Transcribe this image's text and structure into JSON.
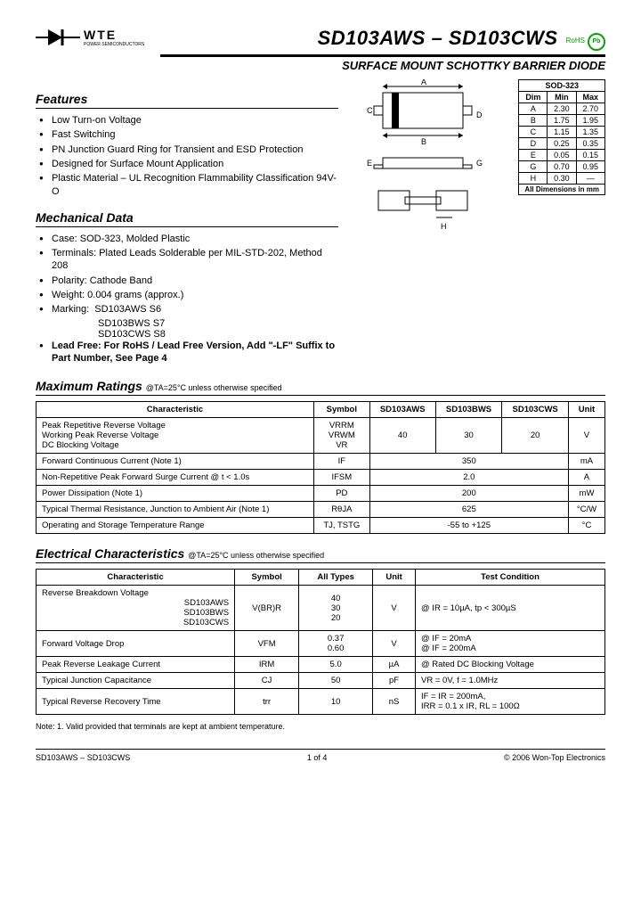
{
  "logo": {
    "brand": "WTE",
    "sub": "POWER SEMICONDUCTORS"
  },
  "title": "SD103AWS – SD103CWS",
  "subtitle": "SURFACE MOUNT SCHOTTKY BARRIER DIODE",
  "badges": {
    "rohs": "RoHS",
    "pb": "Pb"
  },
  "features": {
    "heading": "Features",
    "items": [
      "Low Turn-on Voltage",
      "Fast Switching",
      "PN Junction Guard Ring for Transient and ESD Protection",
      "Designed for Surface Mount Application",
      "Plastic Material – UL Recognition Flammability Classification 94V-O"
    ]
  },
  "mechanical": {
    "heading": "Mechanical Data",
    "items": [
      "Case: SOD-323, Molded Plastic",
      "Terminals: Plated Leads Solderable per MIL-STD-202, Method 208",
      "Polarity: Cathode Band",
      "Weight: 0.004 grams (approx.)"
    ],
    "marking_label": "Marking:",
    "markings": [
      "SD103AWS      S6",
      "SD103BWS      S7",
      "SD103CWS      S8"
    ],
    "leadfree": "Lead Free: For RoHS / Lead Free Version, Add \"-LF\" Suffix to Part Number, See Page 4"
  },
  "dimensions": {
    "title": "SOD-323",
    "head": [
      "Dim",
      "Min",
      "Max"
    ],
    "rows": [
      [
        "A",
        "2.30",
        "2.70"
      ],
      [
        "B",
        "1.75",
        "1.95"
      ],
      [
        "C",
        "1.15",
        "1.35"
      ],
      [
        "D",
        "0.25",
        "0.35"
      ],
      [
        "E",
        "0.05",
        "0.15"
      ],
      [
        "G",
        "0.70",
        "0.95"
      ],
      [
        "H",
        "0.30",
        "—"
      ]
    ],
    "footer": "All Dimensions in mm"
  },
  "maxratings": {
    "heading": "Maximum Ratings",
    "cond": "@TA=25°C unless otherwise specified",
    "head": [
      "Characteristic",
      "Symbol",
      "SD103AWS",
      "SD103BWS",
      "SD103CWS",
      "Unit"
    ],
    "rows": [
      {
        "c": "Peak Repetitive Reverse Voltage\nWorking Peak Reverse Voltage\nDC Blocking Voltage",
        "s": "VRRM\nVRWM\nVR",
        "v": [
          "40",
          "30",
          "20"
        ],
        "u": "V"
      },
      {
        "c": "Forward Continuous Current (Note 1)",
        "s": "IF",
        "span": "350",
        "u": "mA"
      },
      {
        "c": "Non-Repetitive Peak Forward Surge Current       @ t < 1.0s",
        "s": "IFSM",
        "span": "2.0",
        "u": "A"
      },
      {
        "c": "Power Dissipation (Note 1)",
        "s": "PD",
        "span": "200",
        "u": "mW"
      },
      {
        "c": "Typical Thermal Resistance, Junction to Ambient Air (Note 1)",
        "s": "RθJA",
        "span": "625",
        "u": "°C/W"
      },
      {
        "c": "Operating and Storage Temperature Range",
        "s": "TJ, TSTG",
        "span": "-55 to +125",
        "u": "°C"
      }
    ]
  },
  "electrical": {
    "heading": "Electrical Characteristics",
    "cond": "@TA=25°C unless otherwise specified",
    "head": [
      "Characteristic",
      "Symbol",
      "All Types",
      "Unit",
      "Test Condition"
    ],
    "rows": [
      {
        "c": "Reverse Breakdown Voltage",
        "sub": "SD103AWS\nSD103BWS\nSD103CWS",
        "s": "V(BR)R",
        "v": "40\n30\n20",
        "u": "V",
        "t": "@ IR = 10µA, tp < 300µS"
      },
      {
        "c": "Forward Voltage Drop",
        "s": "VFM",
        "v": "0.37\n0.60",
        "u": "V",
        "t": "@ IF = 20mA\n@ IF = 200mA"
      },
      {
        "c": "Peak Reverse Leakage Current",
        "s": "IRM",
        "v": "5.0",
        "u": "µA",
        "t": "@ Rated DC Blocking Voltage"
      },
      {
        "c": "Typical Junction Capacitance",
        "s": "CJ",
        "v": "50",
        "u": "pF",
        "t": "VR = 0V, f = 1.0MHz"
      },
      {
        "c": "Typical Reverse Recovery Time",
        "s": "trr",
        "v": "10",
        "u": "nS",
        "t": "IF = IR = 200mA,\nIRR = 0.1 x IR, RL = 100Ω"
      }
    ]
  },
  "note": "Note:   1. Valid provided that terminals are kept at ambient temperature.",
  "footer": {
    "left": "SD103AWS – SD103CWS",
    "center": "1 of 4",
    "right": "© 2006 Won-Top Electronics"
  }
}
